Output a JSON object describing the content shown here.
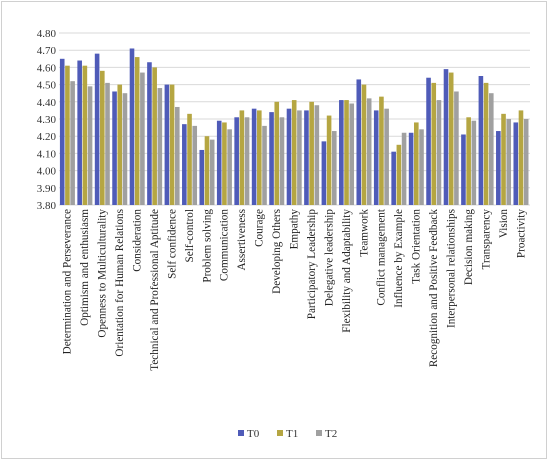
{
  "chart_data": {
    "type": "bar",
    "title": "",
    "xlabel": "",
    "ylabel": "",
    "ylim": [
      3.8,
      4.8
    ],
    "y_ticks": [
      "3.80",
      "3.90",
      "4.00",
      "4.10",
      "4.20",
      "4.30",
      "4.40",
      "4.50",
      "4.60",
      "4.70",
      "4.80"
    ],
    "grid": true,
    "legend_position": "bottom",
    "categories": [
      "Determination and Perseverance",
      "Optimism and enthusiasm",
      "Openness to Multiculturality",
      "Orientation for Human Relations",
      "Consideration",
      "Technical and Professional Aptitude",
      "Self confidence",
      "Self-control",
      "Problem solving",
      "Communication",
      "Assertiveness",
      "Courage",
      "Developing Others",
      "Empathy",
      "Participatory Leadership",
      "Delegative leadership",
      "Flexibility and Adaptability",
      "Teamwork",
      "Conflict management",
      "Influence by Example",
      "Task Orientation",
      "Recognition and Positive Feedback",
      "Interpersonal relationships",
      "Decision making",
      "Transparency",
      "Vision",
      "Proactivity"
    ],
    "series": [
      {
        "name": "T0",
        "color": "#4f5bb8",
        "values": [
          4.65,
          4.64,
          4.68,
          4.46,
          4.71,
          4.63,
          4.5,
          4.27,
          4.12,
          4.29,
          4.31,
          4.36,
          4.34,
          4.36,
          4.35,
          4.17,
          4.41,
          4.53,
          4.35,
          4.11,
          4.22,
          4.54,
          4.59,
          4.21,
          4.55,
          4.23,
          4.28
        ]
      },
      {
        "name": "T1",
        "color": "#b5a642",
        "values": [
          4.61,
          4.61,
          4.58,
          4.5,
          4.66,
          4.6,
          4.5,
          4.33,
          4.2,
          4.28,
          4.35,
          4.35,
          4.4,
          4.41,
          4.4,
          4.32,
          4.41,
          4.5,
          4.43,
          4.15,
          4.28,
          4.51,
          4.57,
          4.31,
          4.51,
          4.33,
          4.35
        ]
      },
      {
        "name": "T2",
        "color": "#a0a0a0",
        "values": [
          4.52,
          4.49,
          4.51,
          4.45,
          4.57,
          4.48,
          4.37,
          4.26,
          4.18,
          4.24,
          4.31,
          4.26,
          4.31,
          4.35,
          4.38,
          4.23,
          4.39,
          4.42,
          4.36,
          4.22,
          4.24,
          4.41,
          4.46,
          4.29,
          4.45,
          4.3,
          4.3
        ]
      }
    ]
  }
}
